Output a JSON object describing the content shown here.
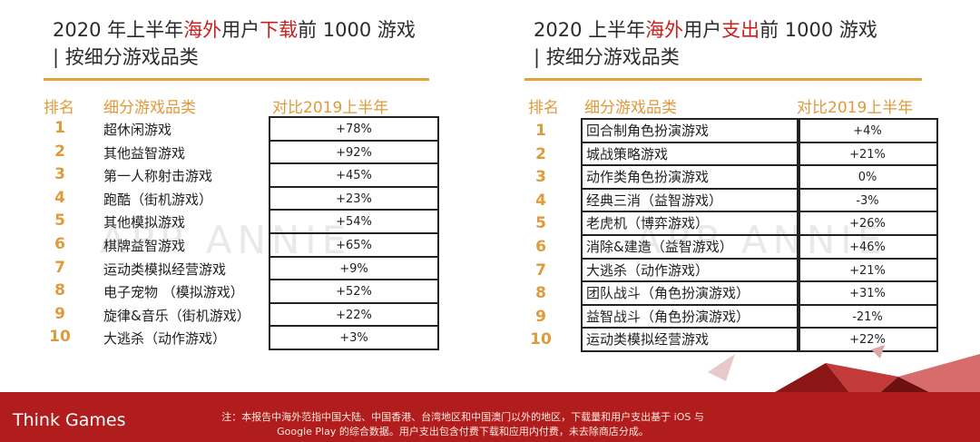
{
  "watermark": "APP ANNIE",
  "left": {
    "title_line1_a": "2020 年上半年",
    "title_line1_b": "海外",
    "title_line1_c": "用户",
    "title_line1_d": "下载",
    "title_line1_e": "前 1000 游戏",
    "title_line2": "| 按细分游戏品类",
    "headers": {
      "rank": "排名",
      "category": "细分游戏品类",
      "change": "对比2019上半年"
    },
    "rows": [
      {
        "rank": "1",
        "category": "超休闲游戏",
        "change": "+78%"
      },
      {
        "rank": "2",
        "category": "其他益智游戏",
        "change": "+92%"
      },
      {
        "rank": "3",
        "category": "第一人称射击游戏",
        "change": "+45%"
      },
      {
        "rank": "4",
        "category": "跑酷（街机游戏）",
        "change": "+23%"
      },
      {
        "rank": "5",
        "category": "其他模拟游戏",
        "change": "+54%"
      },
      {
        "rank": "6",
        "category": "棋牌益智游戏",
        "change": "+65%"
      },
      {
        "rank": "7",
        "category": "运动类模拟经营游戏",
        "change": "+9%"
      },
      {
        "rank": "8",
        "category": "电子宠物 （模拟游戏）",
        "change": "+52%"
      },
      {
        "rank": "9",
        "category": "旋律&音乐（街机游戏）",
        "change": "+22%"
      },
      {
        "rank": "10",
        "category": "大逃杀（动作游戏）",
        "change": "+3%"
      }
    ]
  },
  "right": {
    "title_line1_a": "2020 上半年",
    "title_line1_b": "海外",
    "title_line1_c": "用户",
    "title_line1_d": "支出",
    "title_line1_e": "前 1000 游戏",
    "title_line2": "| 按细分游戏品类",
    "headers": {
      "rank": "排名",
      "category": "细分游戏品类",
      "change": "对比2019上半年"
    },
    "rows": [
      {
        "rank": "1",
        "category": "回合制角色扮演游戏",
        "change": "+4%"
      },
      {
        "rank": "2",
        "category": "城战策略游戏",
        "change": "+21%"
      },
      {
        "rank": "3",
        "category": "动作类角色扮演游戏",
        "change": "0%"
      },
      {
        "rank": "4",
        "category": "经典三消（益智游戏）",
        "change": "-3%"
      },
      {
        "rank": "5",
        "category": "老虎机（博弈游戏）",
        "change": "+26%"
      },
      {
        "rank": "6",
        "category": "消除&建造（益智游戏）",
        "change": "+46%"
      },
      {
        "rank": "7",
        "category": "大逃杀（动作游戏）",
        "change": "+21%"
      },
      {
        "rank": "8",
        "category": "团队战斗（角色扮演游戏）",
        "change": "+31%"
      },
      {
        "rank": "9",
        "category": "益智战斗（角色扮演游戏）",
        "change": "-21%"
      },
      {
        "rank": "10",
        "category": "运动类模拟经营游戏",
        "change": "+22%"
      }
    ]
  },
  "footer": {
    "brand": "Think Games",
    "note_line1": "注：本报告中海外范指中国大陆、中国香港、台湾地区和中国澳门以外的地区，下载量和用户支出基于 iOS 与",
    "note_line2": "Google Play 的综合数据。用户支出包含付费下载和应用内付费，未去除商店分成。"
  },
  "colors": {
    "accent": "#e09a3b",
    "highlight": "#c8201e",
    "footer_bg": "#b11d1d"
  }
}
